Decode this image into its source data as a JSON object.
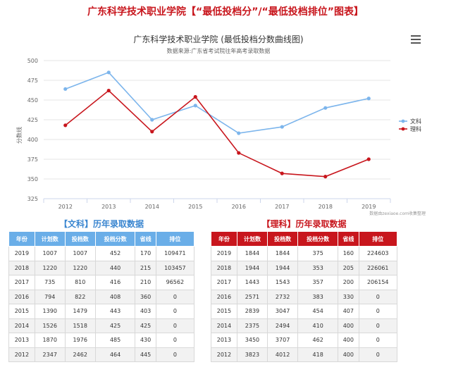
{
  "page_title": "广东科学技术职业学院【“最低投档分”/“最低投档排位”图表】",
  "chart_data": {
    "type": "line",
    "title": "广东科学技术职业学院   (最低投档分数曲线图)",
    "subtitle": "数据来源:广东省考试院往年高考录取数据",
    "ylabel": "分数线",
    "xlabel": "",
    "categories": [
      "2012",
      "2013",
      "2014",
      "2015",
      "2016",
      "2017",
      "2018",
      "2019"
    ],
    "yticks": [
      "500",
      "475",
      "450",
      "425",
      "400",
      "375",
      "350",
      "325"
    ],
    "ylim": [
      325,
      500
    ],
    "grid": true,
    "legend_position": "right",
    "credit": "数据由zexiaoe.com收集整理",
    "series": [
      {
        "name": "文科",
        "color": "#7cb5ec",
        "values": [
          464,
          485,
          425,
          443,
          408,
          416,
          440,
          452
        ]
      },
      {
        "name": "理科",
        "color": "#c8161d",
        "values": [
          418,
          462,
          410,
          454,
          383,
          357,
          353,
          375
        ]
      }
    ]
  },
  "menu": {
    "icon": "hamburger-menu-icon"
  },
  "wen_table": {
    "title": "【文科】历年录取数据",
    "header_color": "#6aaee8",
    "headers": [
      "年份",
      "计划数",
      "投档数",
      "投档分数",
      "省线",
      "排位"
    ],
    "rows": [
      [
        "2019",
        "1007",
        "1007",
        "452",
        "170",
        "109471"
      ],
      [
        "2018",
        "1220",
        "1220",
        "440",
        "215",
        "103457"
      ],
      [
        "2017",
        "735",
        "810",
        "416",
        "210",
        "96562"
      ],
      [
        "2016",
        "794",
        "822",
        "408",
        "360",
        "0"
      ],
      [
        "2015",
        "1390",
        "1479",
        "443",
        "403",
        "0"
      ],
      [
        "2014",
        "1526",
        "1518",
        "425",
        "425",
        "0"
      ],
      [
        "2013",
        "1870",
        "1976",
        "485",
        "430",
        "0"
      ],
      [
        "2012",
        "2347",
        "2462",
        "464",
        "445",
        "0"
      ]
    ]
  },
  "li_table": {
    "title": "【理科】历年录取数据",
    "header_color": "#c8161d",
    "headers": [
      "年份",
      "计划数",
      "投档数",
      "投档分数",
      "省线",
      "排位"
    ],
    "rows": [
      [
        "2019",
        "1844",
        "1844",
        "375",
        "160",
        "224603"
      ],
      [
        "2018",
        "1944",
        "1944",
        "353",
        "205",
        "226061"
      ],
      [
        "2017",
        "1443",
        "1543",
        "357",
        "200",
        "206154"
      ],
      [
        "2016",
        "2571",
        "2732",
        "383",
        "330",
        "0"
      ],
      [
        "2015",
        "2839",
        "3047",
        "454",
        "407",
        "0"
      ],
      [
        "2014",
        "2375",
        "2494",
        "410",
        "400",
        "0"
      ],
      [
        "2013",
        "3450",
        "3707",
        "462",
        "400",
        "0"
      ],
      [
        "2012",
        "3823",
        "4012",
        "418",
        "400",
        "0"
      ]
    ]
  }
}
